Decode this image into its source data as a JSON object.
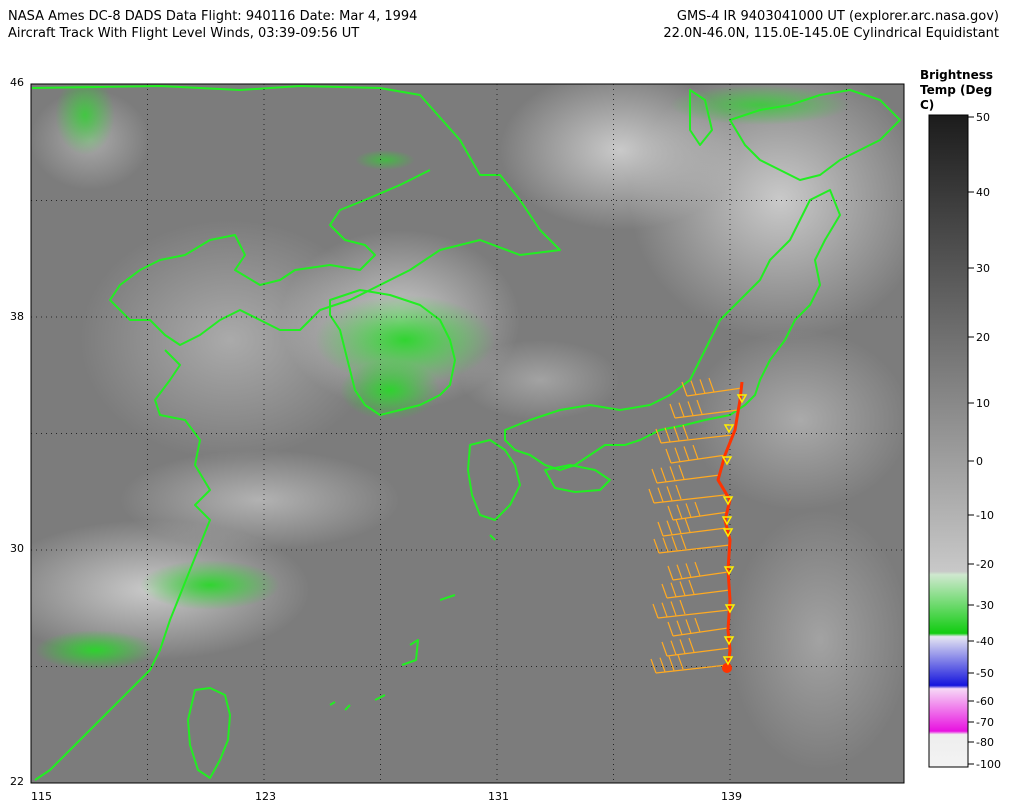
{
  "header": {
    "left_line1": "NASA Ames DC-8 DADS Data  Flight: 940116  Date: Mar 4, 1994",
    "left_line2": "Aircraft Track With Flight Level Winds, 03:39-09:56 UT",
    "right_line1": "GMS-4 IR 9403041000 UT (explorer.arc.nasa.gov)",
    "right_line2": "22.0N-46.0N, 115.0E-145.0E Cylindrical Equidistant"
  },
  "map": {
    "lon_range": [
      115,
      145
    ],
    "lat_range": [
      22,
      46
    ],
    "x_ticks": [
      "115",
      "123",
      "131",
      "139"
    ],
    "y_ticks": [
      "46",
      "38",
      "30",
      "22"
    ],
    "grid": "dotted, every 4 degrees",
    "coast_color": "#22ee22",
    "track_color": "#ff3300",
    "barb_color": "#ffaa22",
    "marker_color": "#ffee00"
  },
  "colorbar": {
    "title_line1": "Brightness",
    "title_line2": "Temp (Deg C)",
    "labels": [
      "50",
      "40",
      "30",
      "20",
      "10",
      "0",
      "-10",
      "-20",
      "-30",
      "-40",
      "-50",
      "-60",
      "-70",
      "-80",
      "-100"
    ]
  }
}
